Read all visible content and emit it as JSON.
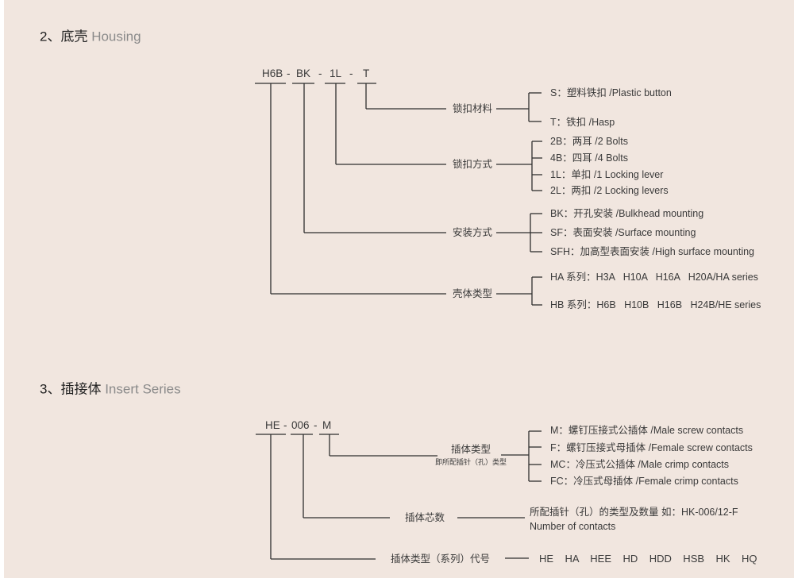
{
  "housing": {
    "title_num": "2、底壳",
    "title_en": "Housing",
    "code": [
      "H6B",
      "-",
      "BK",
      "-",
      "1L",
      "-",
      "T"
    ],
    "groups": [
      {
        "label": "锁扣材料",
        "items": [
          "S：塑料铁扣 /Plastic button",
          "T：铁扣 /Hasp"
        ]
      },
      {
        "label": "锁扣方式",
        "items": [
          "2B：两耳 /2 Bolts",
          "4B：四耳 /4 Bolts",
          "1L：单扣 /1 Locking  lever",
          "2L：两扣 /2 Locking  levers"
        ]
      },
      {
        "label": "安装方式",
        "items": [
          "BK：开孔安装 /Bulkhead mounting",
          "SF：表面安装 /Surface mounting",
          "SFH：加高型表面安装 /High surface mounting"
        ]
      },
      {
        "label": "壳体类型",
        "items": [
          "HA 系列：H3A   H10A   H16A   H20A/HA series",
          "HB 系列：H6B   H10B   H16B   H24B/HE series"
        ]
      }
    ]
  },
  "insert": {
    "title_num": "3、插接体",
    "title_en": "Insert Series",
    "code": [
      "HE",
      "-",
      "006",
      "-",
      "M"
    ],
    "type": {
      "label": "插体类型",
      "sublabel": "即所配插针（孔）类型",
      "items": [
        "M：螺钉压接式公插体 /Male screw contacts",
        "F：螺钉压接式母插体 /Female screw contacts",
        "MC：冷压式公插体 /Male crimp contacts",
        "FC：冷压式母插体 /Female crimp contacts"
      ]
    },
    "count": {
      "label": "插体芯数",
      "desc_cn": "所配插针（孔）的类型及数量  如：HK-006/12-F",
      "desc_en": "Number of contacts"
    },
    "series": {
      "label": "插体类型（系列）代号",
      "values": "HE    HA    HEE    HD    HDD    HSB    HK    HQ"
    }
  }
}
